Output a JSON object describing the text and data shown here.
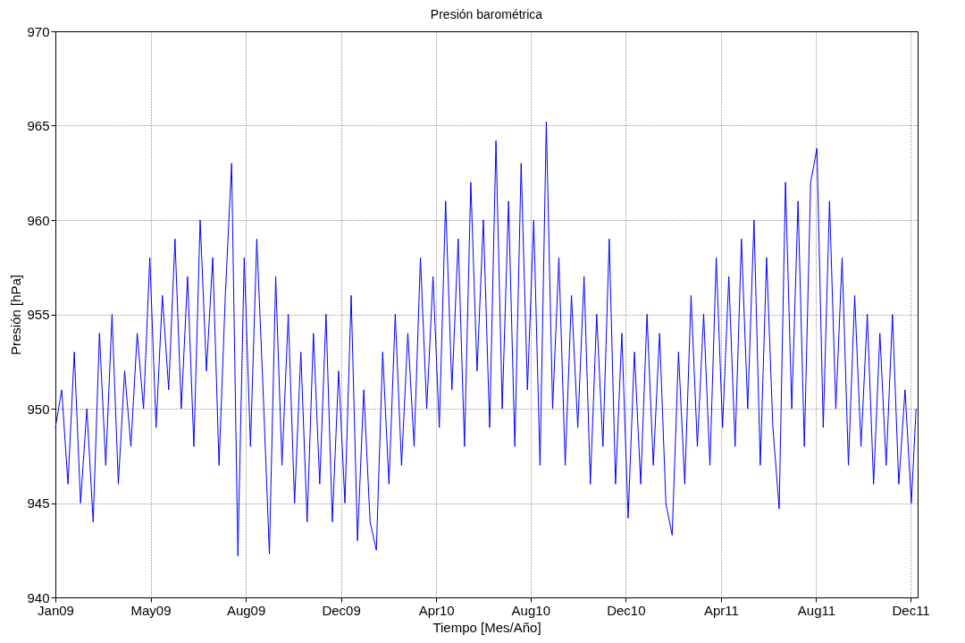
{
  "chart_data": {
    "type": "line",
    "title": "Presión barométrica",
    "xlabel": "Tiempo [Mes/Año]",
    "ylabel": "Presión [hPa]",
    "xlim": [
      "2009-01-01",
      "2012-01-02"
    ],
    "xticks": [
      {
        "value": "2009-01-01",
        "label": "Jan09"
      },
      {
        "value": "2009-05-02",
        "label": "May09"
      },
      {
        "value": "2009-08-31",
        "label": "Aug09"
      },
      {
        "value": "2009-12-30",
        "label": "Dec09"
      },
      {
        "value": "2010-04-30",
        "label": "Apr10"
      },
      {
        "value": "2010-08-28",
        "label": "Aug10"
      },
      {
        "value": "2010-12-27",
        "label": "Dec10"
      },
      {
        "value": "2011-04-27",
        "label": "Apr11"
      },
      {
        "value": "2011-08-26",
        "label": "Aug11"
      },
      {
        "value": "2011-12-24",
        "label": "Dec11"
      }
    ],
    "ylim": [
      940,
      970
    ],
    "yticks": [
      940,
      945,
      950,
      955,
      960,
      965,
      970
    ],
    "grid": true,
    "marker": "none",
    "line_style": "solid",
    "x": [
      "2009-01-01",
      "2009-01-09",
      "2009-01-17",
      "2009-01-25",
      "2009-02-02",
      "2009-02-10",
      "2009-02-18",
      "2009-02-26",
      "2009-03-06",
      "2009-03-14",
      "2009-03-22",
      "2009-03-30",
      "2009-04-07",
      "2009-04-15",
      "2009-04-23",
      "2009-05-01",
      "2009-05-09",
      "2009-05-17",
      "2009-05-25",
      "2009-06-02",
      "2009-06-10",
      "2009-06-18",
      "2009-06-26",
      "2009-07-04",
      "2009-07-12",
      "2009-07-20",
      "2009-07-28",
      "2009-08-05",
      "2009-08-13",
      "2009-08-21",
      "2009-08-29",
      "2009-09-06",
      "2009-09-14",
      "2009-09-22",
      "2009-09-30",
      "2009-10-08",
      "2009-10-16",
      "2009-10-24",
      "2009-11-01",
      "2009-11-09",
      "2009-11-17",
      "2009-11-25",
      "2009-12-03",
      "2009-12-11",
      "2009-12-19",
      "2009-12-27",
      "2010-01-04",
      "2010-01-12",
      "2010-01-20",
      "2010-01-28",
      "2010-02-05",
      "2010-02-13",
      "2010-02-21",
      "2010-03-01",
      "2010-03-09",
      "2010-03-17",
      "2010-03-25",
      "2010-04-02",
      "2010-04-10",
      "2010-04-18",
      "2010-04-26",
      "2010-05-04",
      "2010-05-12",
      "2010-05-20",
      "2010-05-28",
      "2010-06-05",
      "2010-06-13",
      "2010-06-21",
      "2010-06-29",
      "2010-07-07",
      "2010-07-15",
      "2010-07-23",
      "2010-07-31",
      "2010-08-08",
      "2010-08-16",
      "2010-08-24",
      "2010-09-01",
      "2010-09-09",
      "2010-09-17",
      "2010-09-25",
      "2010-10-03",
      "2010-10-11",
      "2010-10-19",
      "2010-10-27",
      "2010-11-04",
      "2010-11-12",
      "2010-11-20",
      "2010-11-28",
      "2010-12-06",
      "2010-12-14",
      "2010-12-22",
      "2010-12-30",
      "2011-01-07",
      "2011-01-15",
      "2011-01-23",
      "2011-01-31",
      "2011-02-08",
      "2011-02-16",
      "2011-02-24",
      "2011-03-04",
      "2011-03-12",
      "2011-03-20",
      "2011-03-28",
      "2011-04-05",
      "2011-04-13",
      "2011-04-21",
      "2011-04-29",
      "2011-05-07",
      "2011-05-15",
      "2011-05-23",
      "2011-05-31",
      "2011-06-08",
      "2011-06-16",
      "2011-06-24",
      "2011-07-02",
      "2011-07-10",
      "2011-07-18",
      "2011-07-26",
      "2011-08-03",
      "2011-08-11",
      "2011-08-19",
      "2011-08-27",
      "2011-09-04",
      "2011-09-12",
      "2011-09-20",
      "2011-09-28",
      "2011-10-06",
      "2011-10-14",
      "2011-10-22",
      "2011-10-30",
      "2011-11-07",
      "2011-11-15",
      "2011-11-23",
      "2011-12-01",
      "2011-12-09",
      "2011-12-17",
      "2011-12-25",
      "2011-12-31"
    ],
    "series": [
      {
        "color": "#0000ff",
        "values": [
          949,
          951,
          946,
          953,
          945,
          950,
          944,
          954,
          947,
          955,
          946,
          952,
          948,
          954,
          950,
          958,
          949,
          956,
          951,
          959,
          950,
          957,
          948,
          960,
          952,
          958,
          947,
          956,
          963,
          942.2,
          958,
          948,
          959,
          951,
          942.3,
          957,
          947,
          955,
          945,
          953,
          944,
          954,
          946,
          955,
          944,
          952,
          945,
          956,
          943,
          951,
          944,
          942.5,
          953,
          946,
          955,
          947,
          954,
          948,
          958,
          950,
          957,
          949,
          961,
          951,
          959,
          948,
          962,
          952,
          960,
          949,
          964.2,
          950,
          961,
          948,
          963,
          951,
          960,
          947,
          965.2,
          950,
          958,
          947,
          956,
          949,
          957,
          946,
          955,
          948,
          959,
          946,
          954,
          944.2,
          953,
          946,
          955,
          947,
          954,
          945,
          943.3,
          953,
          946,
          956,
          948,
          955,
          947,
          958,
          949,
          957,
          948,
          959,
          950,
          960,
          947,
          958,
          949,
          944.7,
          962,
          950,
          961,
          948,
          962,
          963.8,
          949,
          961,
          950,
          958,
          947,
          956,
          948,
          955,
          946,
          954,
          947,
          955,
          946,
          951,
          945,
          950
        ]
      }
    ]
  }
}
